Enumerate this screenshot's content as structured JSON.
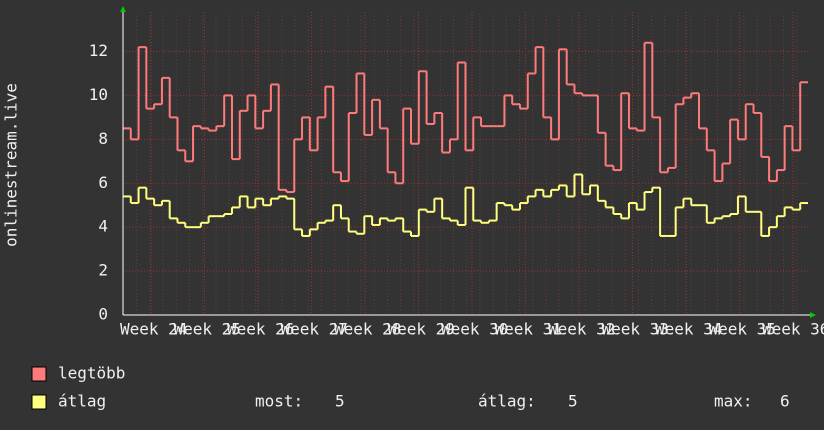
{
  "chart_data": {
    "type": "step",
    "y_label": "onlinestream.live",
    "x_labels": [
      "Week 24",
      "Week 25",
      "Week 26",
      "Week 27",
      "Week 28",
      "Week 29",
      "Week 30",
      "Week 31",
      "Week 32",
      "Week 33",
      "Week 34",
      "Week 35",
      "Week 36"
    ],
    "ylim": [
      0,
      13.8
    ],
    "yticks": [
      0,
      2,
      4,
      6,
      8,
      10,
      12
    ],
    "grid": true,
    "series": [
      {
        "name": "legtöbb",
        "color": "#ff7b7b",
        "values": [
          8.5,
          8.0,
          12.2,
          9.4,
          9.6,
          10.8,
          9.0,
          7.5,
          7.0,
          8.6,
          8.5,
          8.4,
          8.6,
          10.0,
          7.1,
          9.3,
          10.0,
          8.5,
          9.3,
          10.5,
          5.7,
          5.6,
          8.0,
          9.0,
          7.5,
          9.0,
          10.4,
          6.5,
          6.1,
          9.2,
          11.0,
          8.2,
          9.8,
          8.5,
          6.5,
          6.0,
          9.4,
          7.8,
          11.1,
          8.7,
          9.2,
          7.4,
          8.0,
          11.5,
          7.5,
          9.0,
          8.6,
          8.6,
          8.6,
          10.0,
          9.6,
          9.4,
          11.0,
          12.2,
          9.0,
          8.0,
          12.1,
          10.5,
          10.1,
          10.0,
          10.0,
          8.3,
          6.8,
          6.6,
          10.1,
          8.5,
          8.4,
          12.4,
          9.0,
          6.5,
          6.7,
          9.6,
          9.9,
          10.1,
          8.5,
          7.5,
          6.1,
          6.9,
          8.9,
          8.0,
          9.6,
          9.2,
          7.2,
          6.1,
          6.6,
          8.6,
          7.5,
          10.6
        ]
      },
      {
        "name": "átlag",
        "color": "#ffff80",
        "values": [
          5.4,
          5.1,
          5.8,
          5.3,
          5.0,
          5.2,
          4.4,
          4.2,
          4.0,
          4.0,
          4.2,
          4.5,
          4.5,
          4.6,
          4.9,
          5.4,
          4.9,
          5.3,
          5.0,
          5.3,
          5.4,
          5.3,
          3.9,
          3.6,
          3.9,
          4.2,
          4.3,
          5.0,
          4.4,
          3.8,
          3.7,
          4.5,
          4.1,
          4.4,
          4.3,
          4.4,
          3.8,
          3.6,
          4.8,
          4.7,
          5.3,
          4.4,
          4.3,
          4.1,
          5.8,
          4.3,
          4.2,
          4.3,
          5.1,
          5.0,
          4.8,
          5.1,
          5.4,
          5.7,
          5.4,
          5.7,
          5.9,
          5.4,
          6.4,
          5.5,
          5.9,
          5.2,
          4.9,
          4.6,
          4.4,
          5.1,
          4.8,
          5.6,
          5.8,
          3.6,
          3.6,
          4.9,
          5.3,
          5.0,
          5.0,
          4.2,
          4.4,
          4.5,
          4.6,
          5.4,
          4.7,
          4.7,
          3.6,
          4.0,
          4.5,
          4.9,
          4.8,
          5.1
        ]
      }
    ],
    "stats": [
      {
        "label": "most:",
        "value": 5
      },
      {
        "label": "átlag:",
        "value": 5
      },
      {
        "label": "max:",
        "value": 6
      }
    ]
  }
}
